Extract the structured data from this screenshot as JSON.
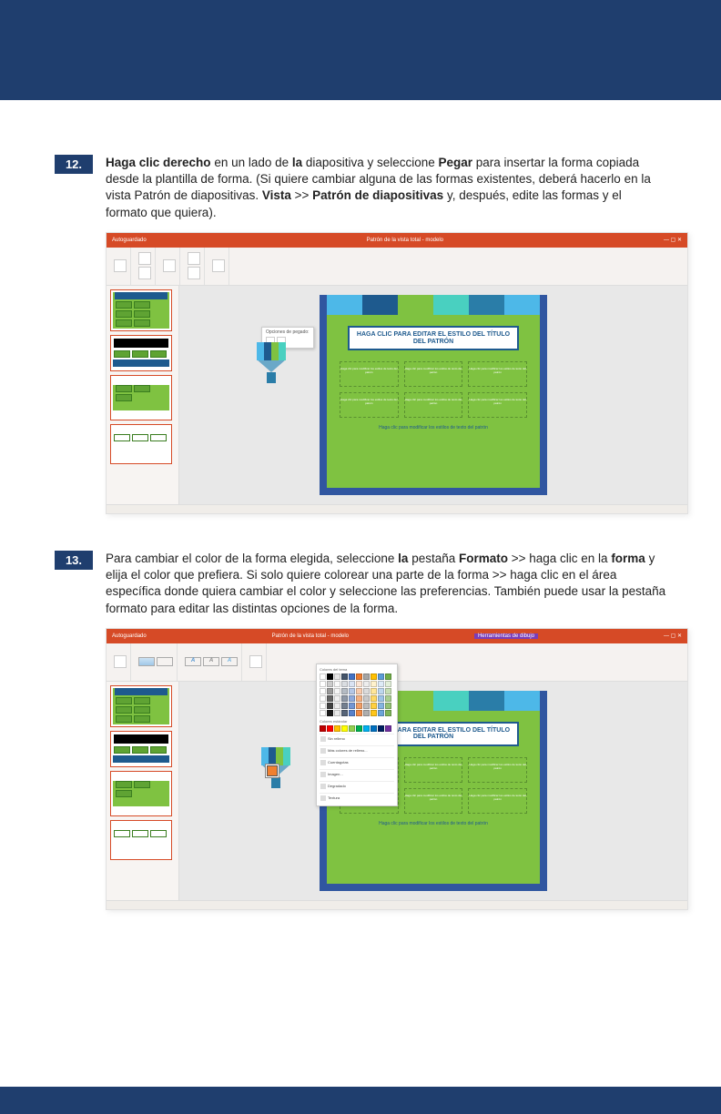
{
  "colors": {
    "brand_blue": "#1f3e6e",
    "ppt_orange": "#d64a26",
    "slide_green": "#7fc241",
    "slide_blue": "#3056a0",
    "title_blue": "#1e5a8e"
  },
  "step12": {
    "num": "12.",
    "text_parts": {
      "b1": "Haga clic derecho",
      "t1": " en un lado de ",
      "b2": "la",
      "t2": " diapositiva y seleccione ",
      "b3": "Pegar",
      "t3": " para insertar la forma copiada desde la plantilla de forma. (Si quiere cambiar alguna de las formas existentes, deberá hacerlo en la vista Patrón de diapositivas. ",
      "b4": "Vista",
      "t4": " >> ",
      "b5": "Patrón de diapositivas",
      "t5": " y, después, edite las formas y el formato que quiera)."
    }
  },
  "step13": {
    "num": "13.",
    "text_parts": {
      "t1": "Para cambiar el color de la forma elegida, seleccione ",
      "b1": "la",
      "t2": " pestaña ",
      "b2": "Formato",
      "t3": " >> haga clic en la ",
      "b3": "forma",
      "t4": " y elija el color que prefiera. Si solo quiere colorear una parte de la forma >> haga clic en el área específica donde quiera cambiar el color y seleccione las preferencias. También puede usar la pestaña formato para editar las distintas opciones de la forma."
    }
  },
  "ppt": {
    "titlebar_left": "Autoguardado",
    "titlebar_center": "Patrón de la vista total - modelo",
    "titlebar_center2": "Herramientas de dibujo",
    "paste_popup": "Opciones de pegado:",
    "slide_title": "HAGA CLIC PARA EDITAR EL ESTILO DEL TÍTULO DEL PATRÓN",
    "slide_cell": "Haga clic para modificar los estilos de texto del patrón",
    "slide_footer": "Haga clic para modificar los estilos de texto del patrón",
    "format_letter": "A"
  },
  "color_picker": {
    "title": "Colores del tema",
    "standard": "Colores estándar",
    "opt1": "Sin relleno",
    "opt2": "Más colores de relleno...",
    "opt3": "Cuentagotas",
    "opt4": "Imagen...",
    "opt5": "Degradado",
    "opt6": "Textura",
    "theme_colors": [
      "#ffffff",
      "#000000",
      "#e7e6e6",
      "#44546a",
      "#4472c4",
      "#ed7d31",
      "#a5a5a5",
      "#ffc000",
      "#5b9bd5",
      "#70ad47"
    ],
    "standard_colors": [
      "#c00000",
      "#ff0000",
      "#ffc000",
      "#ffff00",
      "#92d050",
      "#00b050",
      "#00b0f0",
      "#0070c0",
      "#002060",
      "#7030a0"
    ]
  }
}
